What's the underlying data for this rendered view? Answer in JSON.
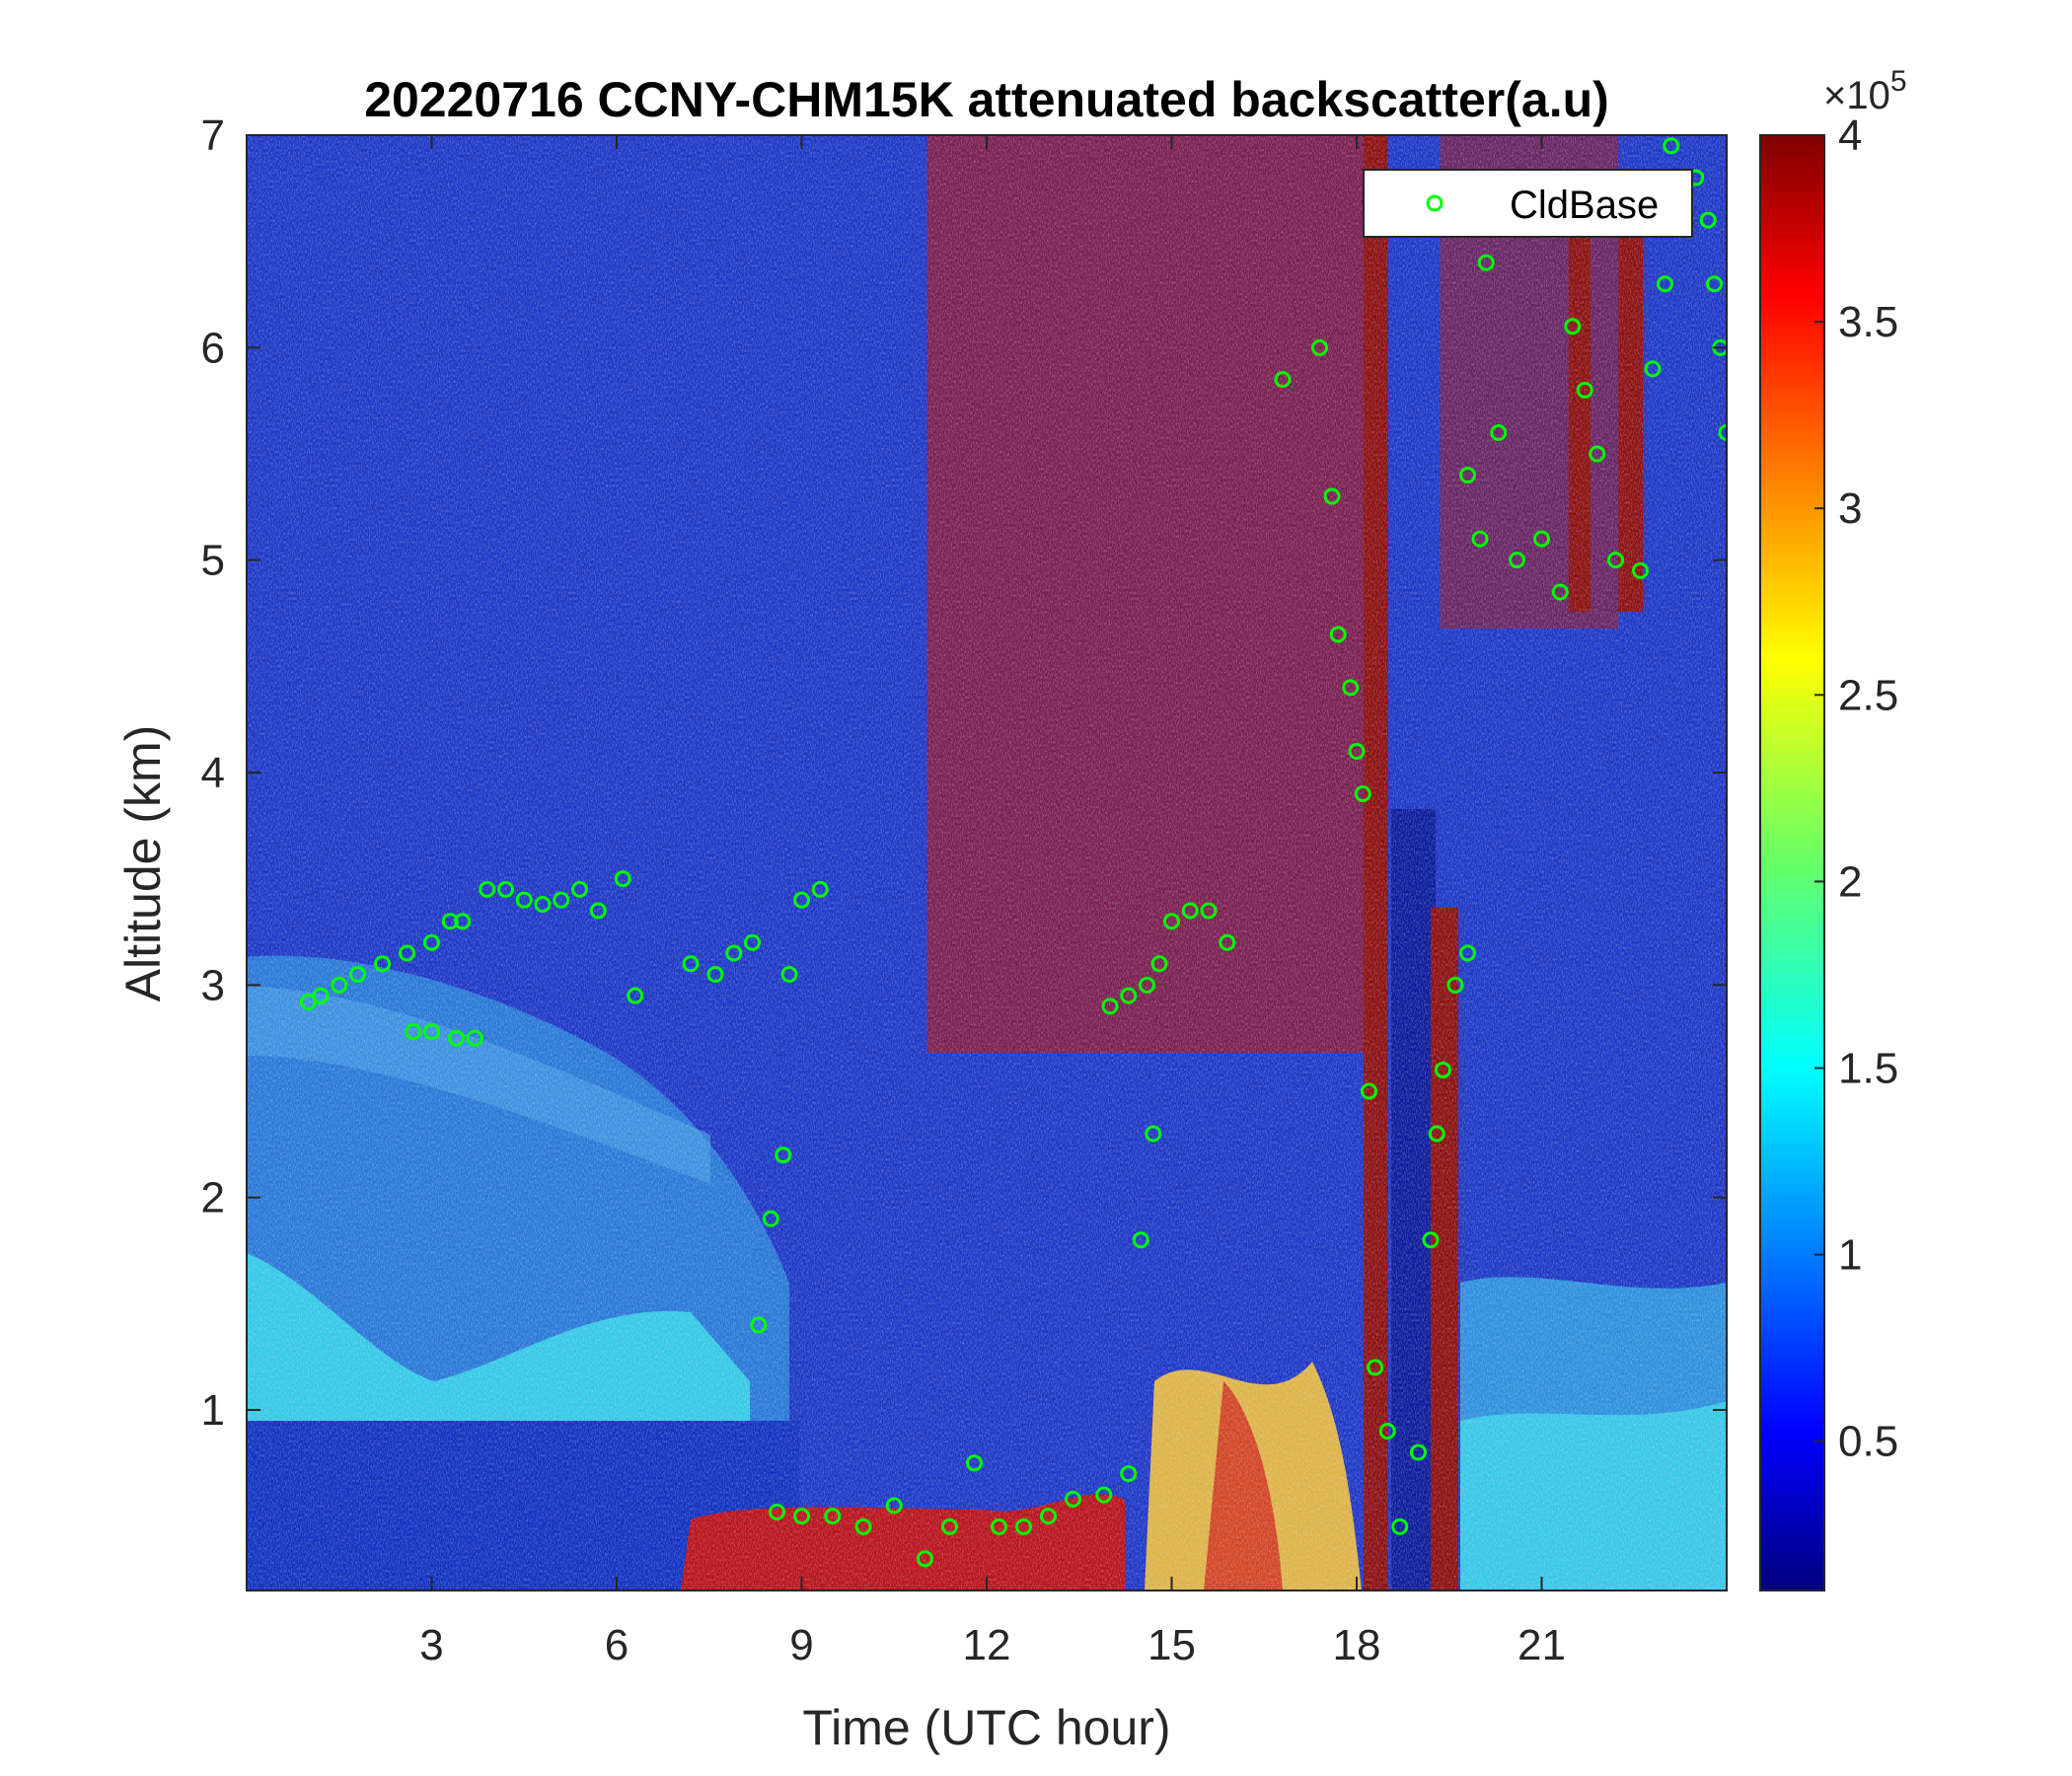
{
  "chart_data": {
    "type": "heatmap",
    "title": "20220716 CCNY-CHM15K attenuated backscatter(a.u)",
    "xlabel": "Time (UTC hour)",
    "ylabel": "Altitude (km)",
    "xlim": [
      0,
      24
    ],
    "ylim": [
      0.15,
      7
    ],
    "xticks": [
      3,
      6,
      9,
      12,
      15,
      18,
      21
    ],
    "yticks": [
      1,
      2,
      3,
      4,
      5,
      6,
      7
    ],
    "colorbar": {
      "colormap": "jet",
      "range": [
        0.1,
        4
      ],
      "ticks": [
        0.5,
        1,
        1.5,
        2,
        2.5,
        3,
        3.5,
        4
      ],
      "multiplier": "×10",
      "exponent": "5"
    },
    "legend": {
      "location": "top-right",
      "entries": [
        {
          "name": "CldBase",
          "marker": "circle",
          "color": "#00ff00"
        }
      ]
    },
    "cloud_base_series": {
      "name": "CldBase",
      "points": [
        [
          1.0,
          2.92
        ],
        [
          1.2,
          2.95
        ],
        [
          1.5,
          3.0
        ],
        [
          1.8,
          3.05
        ],
        [
          2.2,
          3.1
        ],
        [
          2.6,
          3.15
        ],
        [
          3.0,
          3.2
        ],
        [
          3.3,
          3.3
        ],
        [
          3.5,
          3.3
        ],
        [
          2.7,
          2.78
        ],
        [
          3.0,
          2.78
        ],
        [
          3.4,
          2.75
        ],
        [
          3.7,
          2.75
        ],
        [
          3.9,
          3.45
        ],
        [
          4.2,
          3.45
        ],
        [
          4.5,
          3.4
        ],
        [
          4.8,
          3.38
        ],
        [
          5.1,
          3.4
        ],
        [
          5.4,
          3.45
        ],
        [
          5.7,
          3.35
        ],
        [
          6.1,
          3.5
        ],
        [
          6.3,
          2.95
        ],
        [
          7.2,
          3.1
        ],
        [
          7.6,
          3.05
        ],
        [
          7.9,
          3.15
        ],
        [
          8.2,
          3.2
        ],
        [
          8.3,
          1.4
        ],
        [
          8.5,
          1.9
        ],
        [
          8.7,
          2.2
        ],
        [
          8.8,
          3.05
        ],
        [
          9.0,
          3.4
        ],
        [
          9.3,
          3.45
        ],
        [
          8.6,
          0.52
        ],
        [
          9.0,
          0.5
        ],
        [
          9.5,
          0.5
        ],
        [
          10.0,
          0.45
        ],
        [
          10.5,
          0.55
        ],
        [
          11.0,
          0.3
        ],
        [
          11.4,
          0.45
        ],
        [
          11.8,
          0.75
        ],
        [
          12.2,
          0.45
        ],
        [
          12.6,
          0.45
        ],
        [
          13.0,
          0.5
        ],
        [
          13.4,
          0.58
        ],
        [
          13.9,
          0.6
        ],
        [
          14.3,
          0.7
        ],
        [
          14.0,
          2.9
        ],
        [
          14.3,
          2.95
        ],
        [
          14.6,
          3.0
        ],
        [
          14.8,
          3.1
        ],
        [
          15.0,
          3.3
        ],
        [
          15.3,
          3.35
        ],
        [
          15.6,
          3.35
        ],
        [
          15.9,
          3.2
        ],
        [
          14.5,
          1.8
        ],
        [
          14.7,
          2.3
        ],
        [
          16.8,
          5.85
        ],
        [
          17.4,
          6.0
        ],
        [
          17.6,
          5.3
        ],
        [
          17.7,
          4.65
        ],
        [
          17.9,
          4.4
        ],
        [
          18.0,
          4.1
        ],
        [
          18.1,
          3.9
        ],
        [
          18.2,
          2.5
        ],
        [
          18.3,
          1.2
        ],
        [
          18.5,
          0.9
        ],
        [
          18.7,
          0.45
        ],
        [
          19.0,
          0.8
        ],
        [
          19.2,
          1.8
        ],
        [
          19.3,
          2.3
        ],
        [
          19.4,
          2.6
        ],
        [
          19.6,
          3.0
        ],
        [
          19.8,
          3.15
        ],
        [
          19.8,
          5.4
        ],
        [
          20.0,
          5.1
        ],
        [
          20.1,
          6.4
        ],
        [
          20.3,
          5.6
        ],
        [
          20.6,
          5.0
        ],
        [
          21.0,
          5.1
        ],
        [
          21.3,
          4.85
        ],
        [
          21.5,
          6.1
        ],
        [
          21.7,
          5.8
        ],
        [
          21.9,
          5.5
        ],
        [
          22.2,
          5.0
        ],
        [
          22.6,
          4.95
        ],
        [
          22.8,
          5.9
        ],
        [
          23.0,
          6.3
        ],
        [
          23.1,
          6.95
        ],
        [
          23.5,
          6.8
        ],
        [
          23.7,
          6.6
        ],
        [
          23.8,
          6.3
        ],
        [
          23.9,
          6.0
        ],
        [
          24.0,
          5.6
        ]
      ]
    }
  }
}
